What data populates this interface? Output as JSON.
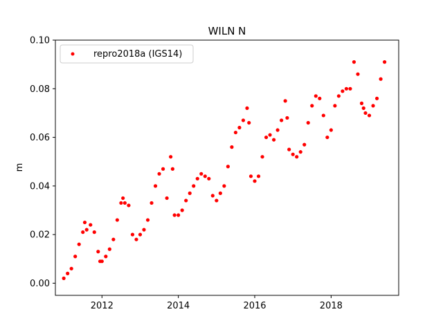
{
  "chart_data": {
    "type": "scatter",
    "title": "WILN N",
    "xlabel": "",
    "ylabel": "m",
    "xlim": [
      2010.78,
      2019.77
    ],
    "ylim": [
      -0.005,
      0.1
    ],
    "xticks": [
      2012,
      2014,
      2016,
      2018
    ],
    "xtick_labels": [
      "2012",
      "2014",
      "2016",
      "2018"
    ],
    "yticks": [
      0.0,
      0.02,
      0.04,
      0.06,
      0.08,
      0.1
    ],
    "ytick_labels": [
      "0.00",
      "0.02",
      "0.04",
      "0.06",
      "0.08",
      "0.10"
    ],
    "grid": false,
    "legend_position": "upper-left",
    "colors": {
      "series": "#ff0000"
    },
    "series": [
      {
        "name": "repro2018a (IGS14)",
        "marker": "circle",
        "x": [
          2011.0,
          2011.1,
          2011.2,
          2011.3,
          2011.4,
          2011.5,
          2011.55,
          2011.6,
          2011.7,
          2011.8,
          2011.9,
          2011.95,
          2012.0,
          2012.1,
          2012.2,
          2012.3,
          2012.4,
          2012.5,
          2012.55,
          2012.6,
          2012.7,
          2012.8,
          2012.9,
          2013.0,
          2013.1,
          2013.2,
          2013.3,
          2013.4,
          2013.5,
          2013.6,
          2013.7,
          2013.8,
          2013.85,
          2013.9,
          2014.0,
          2014.1,
          2014.2,
          2014.3,
          2014.4,
          2014.5,
          2014.6,
          2014.7,
          2014.8,
          2014.9,
          2015.0,
          2015.1,
          2015.2,
          2015.3,
          2015.4,
          2015.5,
          2015.6,
          2015.7,
          2015.8,
          2015.85,
          2015.9,
          2016.0,
          2016.1,
          2016.2,
          2016.3,
          2016.4,
          2016.5,
          2016.6,
          2016.7,
          2016.8,
          2016.85,
          2016.9,
          2017.0,
          2017.1,
          2017.2,
          2017.3,
          2017.4,
          2017.5,
          2017.6,
          2017.7,
          2017.8,
          2017.9,
          2018.0,
          2018.1,
          2018.2,
          2018.3,
          2018.4,
          2018.5,
          2018.6,
          2018.7,
          2018.8,
          2018.85,
          2018.9,
          2019.0,
          2019.1,
          2019.2,
          2019.3,
          2019.4
        ],
        "y": [
          0.002,
          0.004,
          0.006,
          0.011,
          0.016,
          0.021,
          0.025,
          0.022,
          0.024,
          0.021,
          0.013,
          0.009,
          0.009,
          0.011,
          0.014,
          0.018,
          0.026,
          0.033,
          0.035,
          0.033,
          0.032,
          0.02,
          0.018,
          0.02,
          0.022,
          0.026,
          0.033,
          0.04,
          0.045,
          0.047,
          0.035,
          0.052,
          0.047,
          0.028,
          0.028,
          0.03,
          0.034,
          0.037,
          0.04,
          0.043,
          0.045,
          0.044,
          0.043,
          0.036,
          0.034,
          0.037,
          0.04,
          0.048,
          0.056,
          0.062,
          0.064,
          0.067,
          0.072,
          0.066,
          0.044,
          0.042,
          0.044,
          0.052,
          0.06,
          0.061,
          0.059,
          0.063,
          0.067,
          0.075,
          0.068,
          0.055,
          0.053,
          0.052,
          0.054,
          0.057,
          0.066,
          0.073,
          0.077,
          0.076,
          0.069,
          0.06,
          0.063,
          0.073,
          0.077,
          0.079,
          0.08,
          0.08,
          0.091,
          0.086,
          0.074,
          0.072,
          0.07,
          0.069,
          0.073,
          0.076,
          0.084,
          0.091
        ]
      }
    ]
  }
}
